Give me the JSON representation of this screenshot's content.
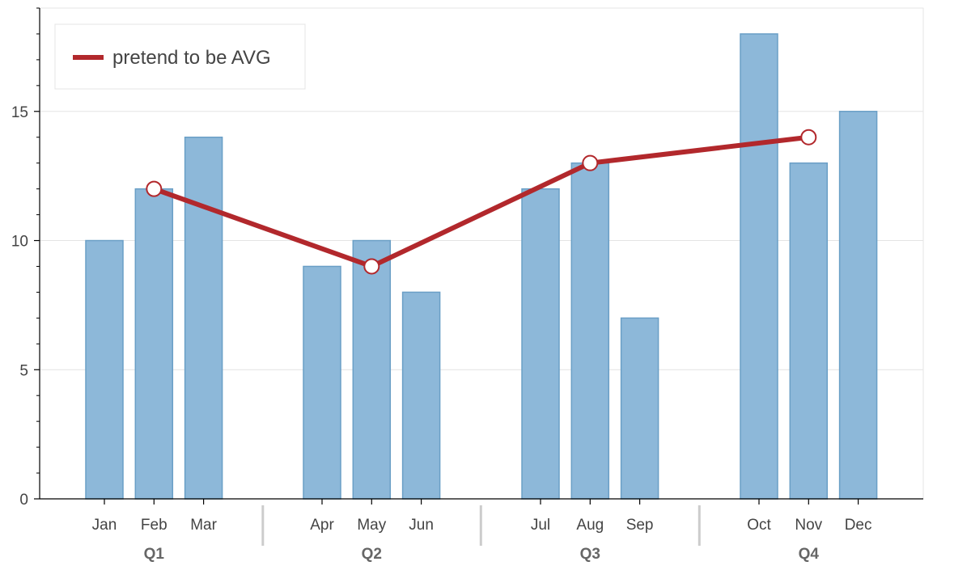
{
  "chart_data": {
    "type": "bar",
    "title": "",
    "xlabel": "",
    "ylabel": "",
    "ylim": [
      0,
      19
    ],
    "yticks": [
      0,
      5,
      10,
      15
    ],
    "grid": true,
    "legend_position": "top-left",
    "groups": [
      {
        "label": "Q1",
        "categories": [
          "Jan",
          "Feb",
          "Mar"
        ]
      },
      {
        "label": "Q2",
        "categories": [
          "Apr",
          "May",
          "Jun"
        ]
      },
      {
        "label": "Q3",
        "categories": [
          "Jul",
          "Aug",
          "Sep"
        ]
      },
      {
        "label": "Q4",
        "categories": [
          "Oct",
          "Nov",
          "Dec"
        ]
      }
    ],
    "categories": [
      "Jan",
      "Feb",
      "Mar",
      "Apr",
      "May",
      "Jun",
      "Jul",
      "Aug",
      "Sep",
      "Oct",
      "Nov",
      "Dec"
    ],
    "values": [
      10,
      12,
      14,
      9,
      10,
      8,
      12,
      13,
      7,
      18,
      13,
      15
    ],
    "line_series": {
      "name": "pretend to be AVG",
      "points": [
        {
          "category": "Feb",
          "value": 12
        },
        {
          "category": "May",
          "value": 9
        },
        {
          "category": "Aug",
          "value": 13
        },
        {
          "category": "Nov",
          "value": 14
        }
      ]
    },
    "colors": {
      "bar_fill": "#8db8d9",
      "bar_stroke": "#6a9fc6",
      "line": "#b2282c",
      "marker_fill": "#ffffff",
      "grid": "#e4e4e4",
      "axis": "#000000",
      "group_separator": "#cccccc"
    }
  }
}
